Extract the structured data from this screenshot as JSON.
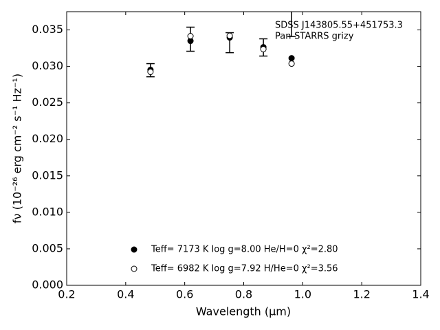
{
  "chart_data": {
    "type": "scatter",
    "xlabel": "Wavelength (μm)",
    "ylabel": "fν (10⁻²⁶ erg cm⁻² s⁻¹ Hz⁻¹)",
    "annotation": [
      "SDSS J143805.55+451753.3",
      "Pan-STARRS grizy"
    ],
    "x": [
      0.484,
      0.6196,
      0.7525,
      0.8667,
      0.9622
    ],
    "series": [
      {
        "name": "Teff=  7173 K  log g=8.00  He/H=0  χ²=2.80",
        "color": "#000000",
        "marker": "filled",
        "values": [
          0.02953,
          0.03349,
          0.03396,
          0.03264,
          0.03113
        ]
      },
      {
        "name": "Teff=  6982 K  log g=7.92  H/He=0  χ²=3.56",
        "color": "#000000",
        "marker": "open",
        "values": [
          0.02925,
          0.03415,
          0.0342,
          0.03236,
          0.03038
        ]
      }
    ],
    "errorbars": {
      "values": [
        0.02948,
        0.03373,
        0.03325,
        0.0326,
        0.0365
      ],
      "errors": [
        0.0009,
        0.00165,
        0.00137,
        0.00118,
        0.0024
      ]
    },
    "xlim": [
      0.2,
      1.4
    ],
    "xticks": [
      0.2,
      0.4,
      0.6,
      0.8,
      {
        "value": 1.0,
        "label": "1.0"
      },
      1.2,
      1.4
    ],
    "ylim": [
      0,
      0.0375
    ],
    "yticks": [
      {
        "value": 0,
        "label": "0.000"
      },
      {
        "value": 0.005,
        "label": "0.005"
      },
      {
        "value": 0.01,
        "label": "0.010"
      },
      {
        "value": 0.015,
        "label": "0.015"
      },
      {
        "value": 0.02,
        "label": "0.020"
      },
      {
        "value": 0.025,
        "label": "0.025"
      },
      {
        "value": 0.03,
        "label": "0.030"
      },
      {
        "value": 0.035,
        "label": "0.035"
      }
    ],
    "grid": false
  }
}
